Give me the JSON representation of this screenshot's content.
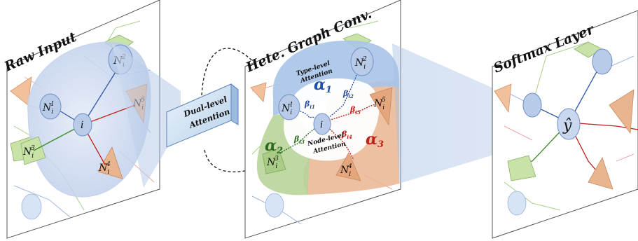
{
  "panels": {
    "raw_input": {
      "title": "Raw Input",
      "nodes": {
        "n1": "N",
        "n2": "N",
        "n3": "N",
        "n4": "N",
        "n5": "N",
        "center": "i"
      },
      "subscripts": {
        "n1": "i",
        "n2": "i",
        "n3": "i",
        "n4": "i",
        "n5": "i"
      },
      "superscripts": {
        "n1": "1",
        "n2": "2",
        "n3": "3",
        "n4": "4",
        "n5": "5"
      }
    },
    "dual_level": {
      "line1": "Dual-level",
      "line2": "Attention"
    },
    "hete_graph": {
      "title": "Hete. Graph Conv.",
      "type_level_line1": "Type-level",
      "type_level_line2": "Attention",
      "node_level_line1": "Node-level",
      "node_level_line2": "Attention",
      "alpha1": "α",
      "alpha1_sub": "1",
      "alpha2": "α",
      "alpha2_sub": "2",
      "alpha3": "α",
      "alpha3_sub": "3",
      "beta": "β",
      "beta_subs": {
        "b1": "i1",
        "b2": "i2",
        "b3": "i3",
        "b4": "i4",
        "b5": "i5"
      },
      "center": "i",
      "nodes": {
        "n1": "N",
        "n2": "N",
        "n3": "N",
        "n4": "N",
        "n5": "N"
      },
      "subscripts": {
        "n1": "i",
        "n2": "i",
        "n3": "i",
        "n4": "i",
        "n5": "i"
      },
      "superscripts": {
        "n1": "1",
        "n2": "2",
        "n3": "3",
        "n4": "4",
        "n5": "5"
      }
    },
    "softmax": {
      "title": "Softmax Layer",
      "output": "ŷ"
    }
  },
  "colors": {
    "blue_region": "#a9c4e8",
    "orange_region": "#e9b58f",
    "green_region": "#b8d49a",
    "node_fill": "#b8cbe8",
    "node_stroke": "#6f8fc4",
    "alpha1": "#1f4fa8",
    "alpha2": "#2f6b1f",
    "alpha3": "#c0201a",
    "beta_blue": "#2a4ea0",
    "beta_red": "#c0201a",
    "beta_green": "#2f6b1f"
  }
}
